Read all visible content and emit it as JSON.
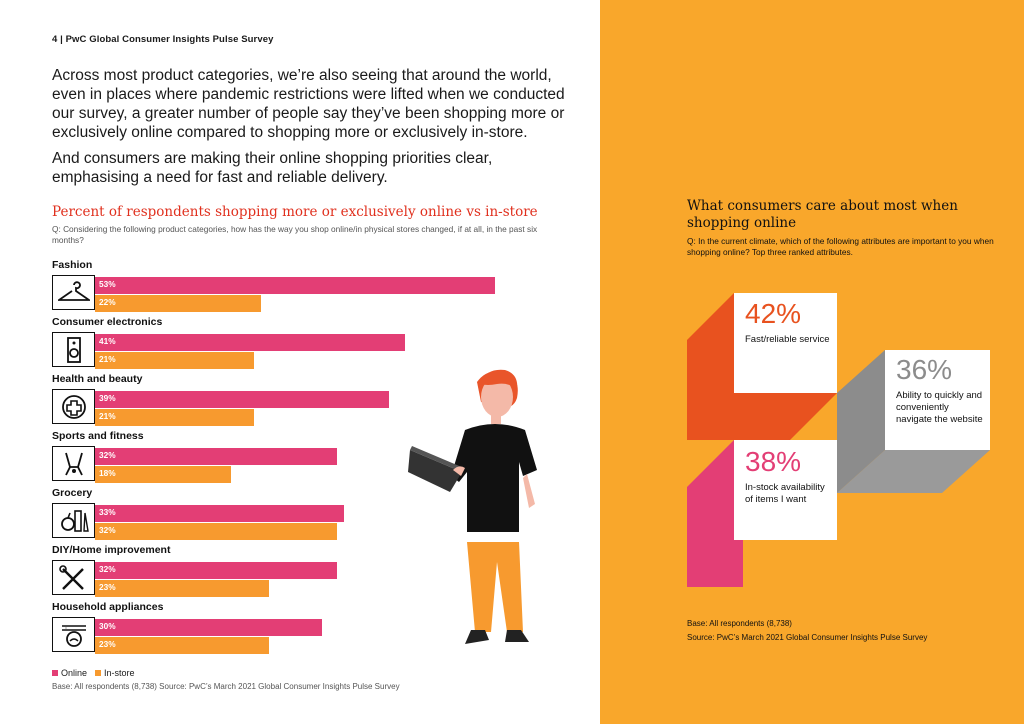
{
  "header": {
    "page_label": "4  |  PwC Global Consumer Insights Pulse Survey"
  },
  "intro": {
    "p1": "Across most product categories, we’re also seeing that around the world, even in places where pandemic restrictions were lifted when we conducted our survey, a greater number of people say they’ve been shopping more or exclusively online compared to shopping more or exclusively in-store.",
    "p2": "And consumers are making their online shopping priorities clear, emphasising a need for fast and reliable delivery."
  },
  "chart_data": [
    {
      "type": "bar",
      "orientation": "horizontal",
      "title": "Percent of respondents shopping more or exclusively online vs in-store",
      "question": "Q: Considering the following product categories, how has the way you shop online/in physical stores changed, if at all, in the past six months?",
      "categories": [
        "Fashion",
        "Consumer electronics",
        "Health and beauty",
        "Sports and fitness",
        "Grocery",
        "DIY/Home improvement",
        "Household appliances"
      ],
      "icons": [
        "hanger-icon",
        "speaker-icon",
        "first-aid-icon",
        "fitness-icon",
        "grocery-icon",
        "tools-icon",
        "washing-machine-icon"
      ],
      "series": [
        {
          "name": "Online",
          "color": "#e33e75",
          "values": [
            53,
            41,
            39,
            32,
            33,
            32,
            30
          ],
          "labels": [
            "53%",
            "41%",
            "39%",
            "32%",
            "33%",
            "32%",
            "30%"
          ]
        },
        {
          "name": "In-store",
          "color": "#f79a2f",
          "values": [
            22,
            21,
            21,
            18,
            32,
            23,
            23
          ],
          "labels": [
            "22%",
            "21%",
            "21%",
            "18%",
            "32%",
            "23%",
            "23%"
          ]
        }
      ],
      "unit": "%",
      "base_note": "Base: All respondents (8,738)  Source: PwC’s March 2021 Global Consumer Insights Pulse Survey"
    },
    {
      "type": "table",
      "title": "What consumers care about most when shopping online",
      "question": "Q: In the current climate, which of the following attributes are important to you when shopping online? Top three ranked attributes.",
      "items": [
        {
          "value": 42,
          "label": "42%",
          "description": "Fast/reliable service"
        },
        {
          "value": 36,
          "label": "36%",
          "description": "Ability to quickly and conveniently navigate the website"
        },
        {
          "value": 38,
          "label": "38%",
          "description": "In-stock availability of items I want"
        }
      ]
    }
  ],
  "legend": {
    "online": "Online",
    "instore": "In-store"
  },
  "right_notes": {
    "base": "Base: All respondents (8,738)",
    "source": "Source: PwC’s March 2021 Global Consumer Insights Pulse Survey"
  },
  "colors": {
    "online": "#e33e75",
    "instore": "#f79a2f",
    "panel": "#f9a72b",
    "title_red": "#e0301e",
    "card1": "#e8521f",
    "card2": "#9a9a9a",
    "card3": "#e33e75"
  }
}
